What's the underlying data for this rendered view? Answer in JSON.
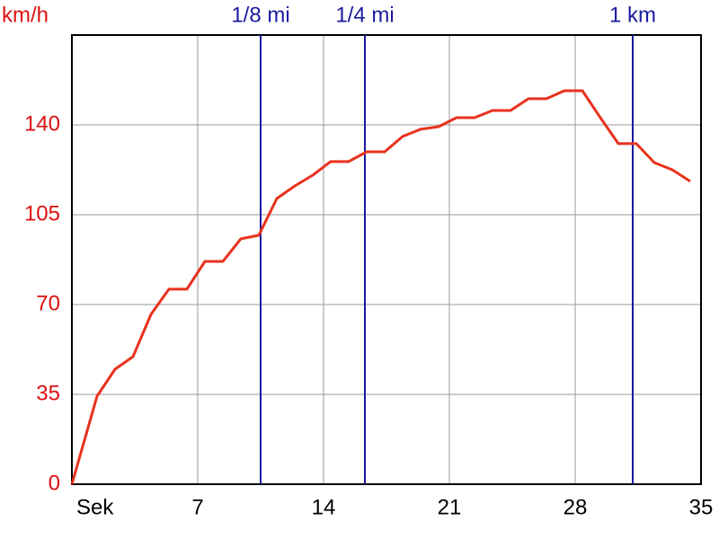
{
  "chart_data": {
    "type": "line",
    "y_label": "km/h",
    "x": [
      0,
      1.4,
      2.4,
      3.4,
      4.4,
      5.4,
      6.4,
      7.4,
      8.4,
      9.4,
      10.4,
      11.4,
      12.4,
      13.4,
      14.4,
      15.4,
      16.4,
      17.4,
      18.4,
      19.4,
      20.4,
      21.4,
      22.4,
      23.4,
      24.4,
      25.4,
      26.4,
      27.4,
      28.4,
      29.4,
      30.4,
      31.4,
      32.4,
      33.4,
      34.4
    ],
    "series": [
      {
        "name": "km/h",
        "color": "#e8321e",
        "values": [
          0,
          34.3,
          44.8,
          49.7,
          66.2,
          76,
          76,
          86.8,
          86.8,
          95.6,
          97,
          111.3,
          116.2,
          120.4,
          125.7,
          125.7,
          129.5,
          129.5,
          135.5,
          138.3,
          139.3,
          142.8,
          142.8,
          145.6,
          145.6,
          150.2,
          150.2,
          153.3,
          153.3,
          142.8,
          132.7,
          132.7,
          125.3,
          122.5,
          118
        ]
      }
    ],
    "xlim": [
      0,
      35
    ],
    "xticks": [
      {
        "value": 0,
        "label": "Sek"
      },
      7,
      14,
      21,
      28,
      35
    ],
    "ylim": [
      0,
      175
    ],
    "yticks": [
      0,
      35,
      70,
      105,
      140
    ],
    "grid": true,
    "markers": [
      {
        "label": "1/8 mi",
        "x": 10.5,
        "color": "#1a1aa0"
      },
      {
        "label": "1/4 mi",
        "x": 16.3,
        "color": "#1a1aa0"
      },
      {
        "label": "1 km",
        "x": 31.2,
        "color": "#1a1aa0"
      }
    ]
  }
}
